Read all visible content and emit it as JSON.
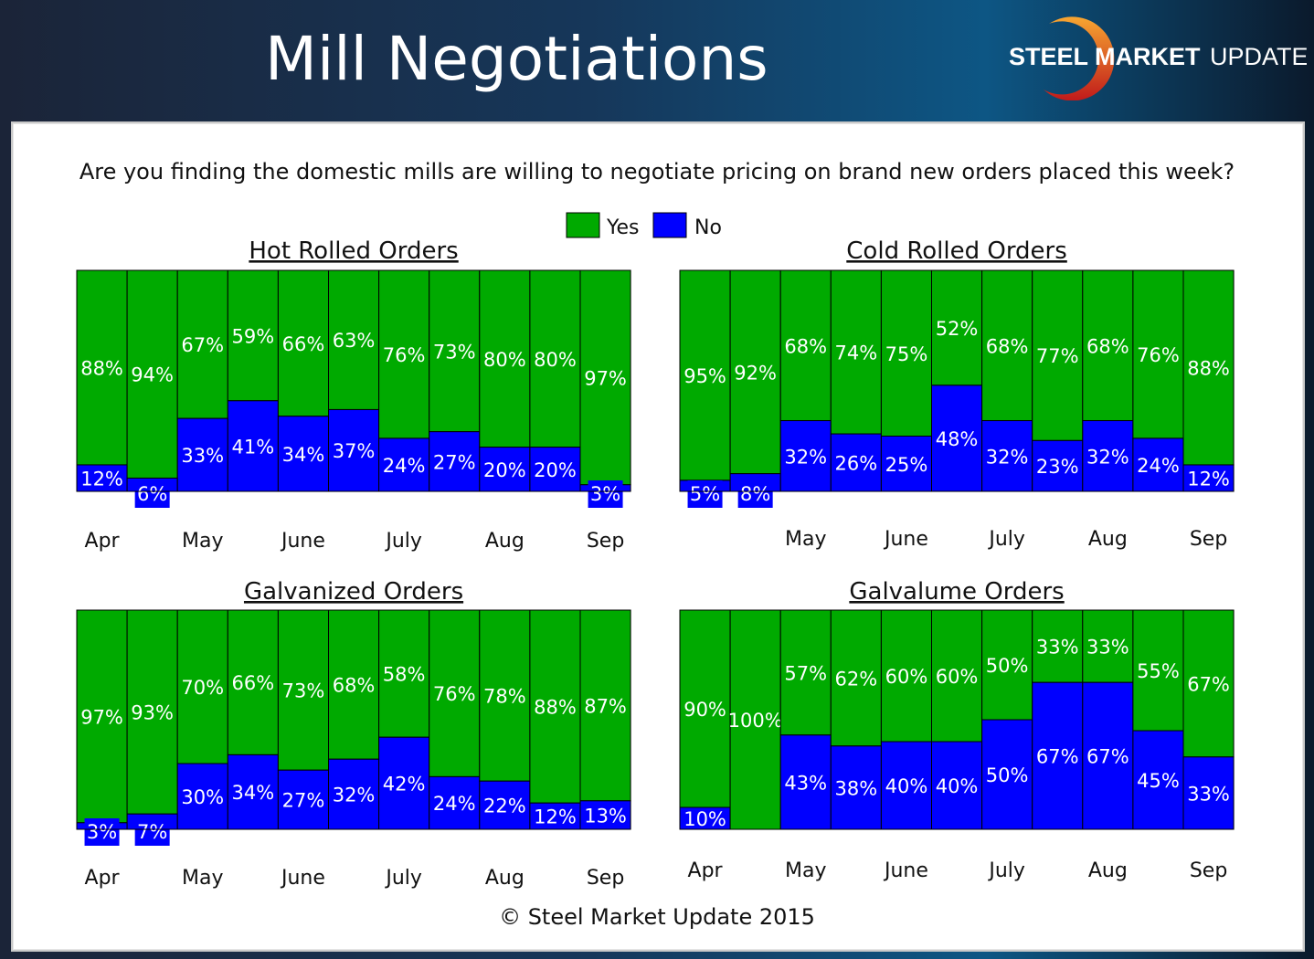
{
  "header": {
    "title": "Mill Negotiations",
    "logo_text_bold": "STEEL MARKET",
    "logo_text_light": "UPDATE"
  },
  "question": "Are you finding the domestic mills are willing to negotiate pricing on brand new orders placed this week?",
  "legend": {
    "yes": "Yes",
    "no": "No"
  },
  "colors": {
    "yes": "#00aa00",
    "no": "#0000ff"
  },
  "footer": "© Steel Market Update 2015",
  "chart_data": [
    {
      "type": "bar",
      "stacked": true,
      "title": "Hot Rolled Orders",
      "ylim": [
        0,
        100
      ],
      "month_labels": [
        {
          "label": "Apr",
          "bar": 0
        },
        {
          "label": "May",
          "bar": 2
        },
        {
          "label": "June",
          "bar": 4
        },
        {
          "label": "July",
          "bar": 6
        },
        {
          "label": "Aug",
          "bar": 8
        },
        {
          "label": "Sep",
          "bar": 10
        }
      ],
      "series": [
        {
          "name": "Yes",
          "values": [
            88,
            94,
            67,
            59,
            66,
            63,
            76,
            73,
            80,
            80,
            97
          ]
        },
        {
          "name": "No",
          "values": [
            12,
            6,
            33,
            41,
            34,
            37,
            24,
            27,
            20,
            20,
            3
          ]
        }
      ]
    },
    {
      "type": "bar",
      "stacked": true,
      "title": "Cold Rolled Orders",
      "ylim": [
        0,
        100
      ],
      "month_labels": [
        {
          "label": "May",
          "bar": 2
        },
        {
          "label": "June",
          "bar": 4
        },
        {
          "label": "July",
          "bar": 6
        },
        {
          "label": "Aug",
          "bar": 8
        },
        {
          "label": "Sep",
          "bar": 10
        }
      ],
      "series": [
        {
          "name": "Yes",
          "values": [
            95,
            92,
            68,
            74,
            75,
            52,
            68,
            77,
            68,
            76,
            88
          ]
        },
        {
          "name": "No",
          "values": [
            5,
            8,
            32,
            26,
            25,
            48,
            32,
            23,
            32,
            24,
            12
          ]
        }
      ]
    },
    {
      "type": "bar",
      "stacked": true,
      "title": "Galvanized Orders",
      "ylim": [
        0,
        100
      ],
      "month_labels": [
        {
          "label": "Apr",
          "bar": 0
        },
        {
          "label": "May",
          "bar": 2
        },
        {
          "label": "June",
          "bar": 4
        },
        {
          "label": "July",
          "bar": 6
        },
        {
          "label": "Aug",
          "bar": 8
        },
        {
          "label": "Sep",
          "bar": 10
        }
      ],
      "series": [
        {
          "name": "Yes",
          "values": [
            97,
            93,
            70,
            66,
            73,
            68,
            58,
            76,
            78,
            88,
            87
          ]
        },
        {
          "name": "No",
          "values": [
            3,
            7,
            30,
            34,
            27,
            32,
            42,
            24,
            22,
            12,
            13
          ]
        }
      ]
    },
    {
      "type": "bar",
      "stacked": true,
      "title": "Galvalume Orders",
      "ylim": [
        0,
        100
      ],
      "month_labels": [
        {
          "label": "Apr",
          "bar": 0
        },
        {
          "label": "May",
          "bar": 2
        },
        {
          "label": "June",
          "bar": 4
        },
        {
          "label": "July",
          "bar": 6
        },
        {
          "label": "Aug",
          "bar": 8
        },
        {
          "label": "Sep",
          "bar": 10
        }
      ],
      "series": [
        {
          "name": "Yes",
          "values": [
            90,
            100,
            57,
            62,
            60,
            60,
            50,
            33,
            33,
            55,
            67
          ]
        },
        {
          "name": "No",
          "values": [
            10,
            0,
            43,
            38,
            40,
            40,
            50,
            67,
            67,
            45,
            33
          ]
        }
      ]
    }
  ]
}
